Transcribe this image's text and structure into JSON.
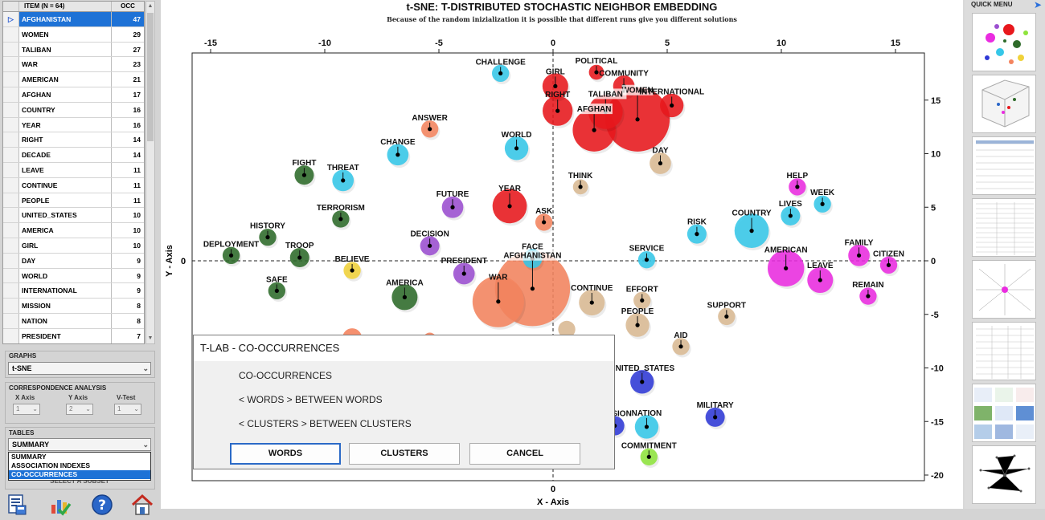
{
  "table": {
    "col_item": "ITEM (N = 64)",
    "col_occ": "OCC",
    "rows": [
      {
        "item": "AFGHANISTAN",
        "occ": "47",
        "selected": true
      },
      {
        "item": "WOMEN",
        "occ": "29"
      },
      {
        "item": "TALIBAN",
        "occ": "27"
      },
      {
        "item": "WAR",
        "occ": "23"
      },
      {
        "item": "AMERICAN",
        "occ": "21"
      },
      {
        "item": "AFGHAN",
        "occ": "17"
      },
      {
        "item": "COUNTRY",
        "occ": "16"
      },
      {
        "item": "YEAR",
        "occ": "16"
      },
      {
        "item": "RIGHT",
        "occ": "14"
      },
      {
        "item": "DECADE",
        "occ": "14"
      },
      {
        "item": "LEAVE",
        "occ": "11"
      },
      {
        "item": "CONTINUE",
        "occ": "11"
      },
      {
        "item": "PEOPLE",
        "occ": "11"
      },
      {
        "item": "UNITED_STATES",
        "occ": "10"
      },
      {
        "item": "AMERICA",
        "occ": "10"
      },
      {
        "item": "GIRL",
        "occ": "10"
      },
      {
        "item": "DAY",
        "occ": "9"
      },
      {
        "item": "WORLD",
        "occ": "9"
      },
      {
        "item": "INTERNATIONAL",
        "occ": "9"
      },
      {
        "item": "MISSION",
        "occ": "8"
      },
      {
        "item": "NATION",
        "occ": "8"
      },
      {
        "item": "PRESIDENT",
        "occ": "7"
      }
    ]
  },
  "graphs": {
    "label": "GRAPHS",
    "value": "t-SNE"
  },
  "correspondence": {
    "label": "CORRESPONDENCE ANALYSIS",
    "x_axis_label": "X Axis",
    "x_axis_value": "1",
    "y_axis_label": "Y Axis",
    "y_axis_value": "2",
    "vtest_label": "V-Test",
    "vtest_value": "1"
  },
  "tables": {
    "label": "TABLES",
    "value": "SUMMARY",
    "options": [
      "SUMMARY",
      "ASSOCIATION INDEXES",
      "CO-OCCURRENCES"
    ],
    "selected_option": "CO-OCCURRENCES",
    "subset_button": "SELECT A SUBSET"
  },
  "bottom_icons": [
    "report-icon",
    "chart-check-icon",
    "help-icon",
    "home-icon"
  ],
  "chart": {
    "title": "t-SNE: T-DISTRIBUTED STOCHASTIC NEIGHBOR EMBEDDING",
    "subtitle": "Because of the random inizialization it is possible that different runs give you different solutions"
  },
  "chart_data": {
    "type": "scatter",
    "title": "t-SNE: T-DISTRIBUTED STOCHASTIC NEIGHBOR EMBEDDING",
    "xlabel": "X - Axis",
    "ylabel": "Y - Axis",
    "xlim": [
      -16.5,
      15.5
    ],
    "ylim": [
      -20,
      19.5
    ],
    "xticks": [
      -15,
      -10,
      -5,
      0,
      5,
      10,
      15
    ],
    "yticks": [
      -20,
      -15,
      -10,
      -5,
      0,
      5,
      10,
      15
    ],
    "grid": false,
    "zero_lines": true,
    "points": [
      {
        "label": "AFGHANISTAN",
        "x": -0.9,
        "y": -2.6,
        "r": 3.5,
        "color": "#f4845f"
      },
      {
        "label": "WAR",
        "x": -2.4,
        "y": -3.8,
        "r": 2.4,
        "color": "#f4845f"
      },
      {
        "label": "WOMEN",
        "x": 3.7,
        "y": 13.2,
        "r": 3.0,
        "color": "#e8181d"
      },
      {
        "label": "AFGHAN",
        "x": 1.8,
        "y": 12.2,
        "r": 2.0,
        "color": "#e8181d"
      },
      {
        "label": "TALIBAN",
        "x": 2.3,
        "y": 13.9,
        "r": 1.6,
        "color": "#e8181d"
      },
      {
        "label": "RIGHT",
        "x": 0.2,
        "y": 14.0,
        "r": 1.4,
        "color": "#e8181d"
      },
      {
        "label": "GIRL",
        "x": 0.1,
        "y": 16.3,
        "r": 1.2,
        "color": "#e8181d"
      },
      {
        "label": "POLITICAL",
        "x": 1.9,
        "y": 17.6,
        "r": 0.7,
        "color": "#e8181d"
      },
      {
        "label": "COMMUNITY",
        "x": 3.1,
        "y": 16.3,
        "r": 1.0,
        "color": "#e8181d"
      },
      {
        "label": "INTERNATIONAL",
        "x": 5.2,
        "y": 14.5,
        "r": 1.1,
        "color": "#e8181d"
      },
      {
        "label": "YEAR",
        "x": -1.9,
        "y": 5.1,
        "r": 1.6,
        "color": "#e8181d"
      },
      {
        "label": "CHALLENGE",
        "x": -2.3,
        "y": 17.5,
        "r": 0.8,
        "color": "#35c7e8"
      },
      {
        "label": "WORLD",
        "x": -1.6,
        "y": 10.5,
        "r": 1.1,
        "color": "#35c7e8"
      },
      {
        "label": "CHANGE",
        "x": -6.8,
        "y": 9.9,
        "r": 1.0,
        "color": "#35c7e8"
      },
      {
        "label": "THREAT",
        "x": -9.2,
        "y": 7.5,
        "r": 1.0,
        "color": "#35c7e8"
      },
      {
        "label": "FACE",
        "x": -0.9,
        "y": 0.2,
        "r": 0.9,
        "color": "#35c7e8"
      },
      {
        "label": "SERVICE",
        "x": 4.1,
        "y": 0.1,
        "r": 0.8,
        "color": "#35c7e8"
      },
      {
        "label": "RISK",
        "x": 6.3,
        "y": 2.5,
        "r": 0.9,
        "color": "#35c7e8"
      },
      {
        "label": "COUNTRY",
        "x": 8.7,
        "y": 2.8,
        "r": 1.6,
        "color": "#35c7e8"
      },
      {
        "label": "LIVES",
        "x": 10.4,
        "y": 4.2,
        "r": 0.9,
        "color": "#35c7e8"
      },
      {
        "label": "WEEK",
        "x": 11.8,
        "y": 5.3,
        "r": 0.8,
        "color": "#35c7e8"
      },
      {
        "label": "NATION",
        "x": 4.1,
        "y": -15.5,
        "r": 1.1,
        "color": "#35c7e8"
      },
      {
        "label": "ANSWER",
        "x": -5.4,
        "y": 12.3,
        "r": 0.8,
        "color": "#f4845f"
      },
      {
        "label": "ASK",
        "x": -0.4,
        "y": 3.6,
        "r": 0.8,
        "color": "#f4845f"
      },
      {
        "label": "THINK",
        "x": 1.2,
        "y": 6.9,
        "r": 0.7,
        "color": "#d9b993"
      },
      {
        "label": "DAY",
        "x": 4.7,
        "y": 9.1,
        "r": 1.0,
        "color": "#d9b993"
      },
      {
        "label": "CONTINUE",
        "x": 1.7,
        "y": -3.9,
        "r": 1.2,
        "color": "#d9b993"
      },
      {
        "label": "EFFORT",
        "x": 3.9,
        "y": -3.7,
        "r": 0.8,
        "color": "#d9b993"
      },
      {
        "label": "PEOPLE",
        "x": 3.7,
        "y": -6.0,
        "r": 1.1,
        "color": "#d9b993"
      },
      {
        "label": "SUPPORT",
        "x": 7.6,
        "y": -5.2,
        "r": 0.8,
        "color": "#d9b993"
      },
      {
        "label": "AID",
        "x": 5.6,
        "y": -8.0,
        "r": 0.8,
        "color": "#d9b993"
      },
      {
        "label": "FIGHT",
        "x": -10.9,
        "y": 8.0,
        "r": 0.9,
        "color": "#2e6b2a"
      },
      {
        "label": "TERRORISM",
        "x": -9.3,
        "y": 3.9,
        "r": 0.8,
        "color": "#2e6b2a"
      },
      {
        "label": "HISTORY",
        "x": -12.5,
        "y": 2.2,
        "r": 0.8,
        "color": "#2e6b2a"
      },
      {
        "label": "TROOP",
        "x": -11.1,
        "y": 0.3,
        "r": 0.9,
        "color": "#2e6b2a"
      },
      {
        "label": "DEPLOYMENT",
        "x": -14.1,
        "y": 0.5,
        "r": 0.8,
        "color": "#2e6b2a"
      },
      {
        "label": "SAFE",
        "x": -12.1,
        "y": -2.8,
        "r": 0.8,
        "color": "#2e6b2a"
      },
      {
        "label": "AMERICA",
        "x": -6.5,
        "y": -3.4,
        "r": 1.2,
        "color": "#2e6b2a"
      },
      {
        "label": "BELIEVE",
        "x": -8.8,
        "y": -0.9,
        "r": 0.8,
        "color": "#f0d23a"
      },
      {
        "label": "FUTURE",
        "x": -4.4,
        "y": 5.0,
        "r": 1.0,
        "color": "#9b4fd0"
      },
      {
        "label": "DECISION",
        "x": -5.4,
        "y": 1.4,
        "r": 0.9,
        "color": "#9b4fd0"
      },
      {
        "label": "PRESIDENT",
        "x": -3.9,
        "y": -1.2,
        "r": 1.0,
        "color": "#9b4fd0"
      },
      {
        "label": "HELP",
        "x": 10.7,
        "y": 6.9,
        "r": 0.8,
        "color": "#ea2ce0"
      },
      {
        "label": "FAMILY",
        "x": 13.4,
        "y": 0.5,
        "r": 1.0,
        "color": "#ea2ce0"
      },
      {
        "label": "CITIZEN",
        "x": 14.7,
        "y": -0.4,
        "r": 0.8,
        "color": "#ea2ce0"
      },
      {
        "label": "AMERICAN",
        "x": 10.2,
        "y": -0.7,
        "r": 1.7,
        "color": "#ea2ce0"
      },
      {
        "label": "LEAVE",
        "x": 11.7,
        "y": -1.8,
        "r": 1.2,
        "color": "#ea2ce0"
      },
      {
        "label": "REMAIN",
        "x": 13.8,
        "y": -3.3,
        "r": 0.8,
        "color": "#ea2ce0"
      },
      {
        "label": "UNITED_STATES",
        "x": 3.9,
        "y": -11.3,
        "r": 1.1,
        "color": "#2f39d6"
      },
      {
        "label": "MILITARY",
        "x": 7.1,
        "y": -14.6,
        "r": 0.9,
        "color": "#2f39d6"
      },
      {
        "label": "MISSION",
        "x": 2.7,
        "y": -15.4,
        "r": 0.9,
        "color": "#2f39d6"
      },
      {
        "label": "COMMITMENT",
        "x": 4.2,
        "y": -18.3,
        "r": 0.8,
        "color": "#8ee43c"
      }
    ],
    "partial_points": [
      {
        "x": -8.8,
        "y": -7.2,
        "r": 0.9,
        "color": "#f4845f"
      },
      {
        "x": -5.4,
        "y": -7.3,
        "r": 0.6,
        "color": "#f4845f"
      },
      {
        "x": 0.6,
        "y": -6.4,
        "r": 0.8,
        "color": "#d9b993"
      }
    ],
    "label_boxes": [
      "TALIBAN",
      "AFGHAN",
      "WOMEN",
      "AFGHANISTAN"
    ]
  },
  "dialog": {
    "title": "T-LAB - CO-OCCURRENCES",
    "line1": "CO-OCCURRENCES",
    "line2": "< WORDS > BETWEEN WORDS",
    "line3": "< CLUSTERS > BETWEEN CLUSTERS",
    "btn_words": "WORDS",
    "btn_clusters": "CLUSTERS",
    "btn_cancel": "CANCEL"
  },
  "quick_menu": {
    "title": "QUICK MENU"
  }
}
